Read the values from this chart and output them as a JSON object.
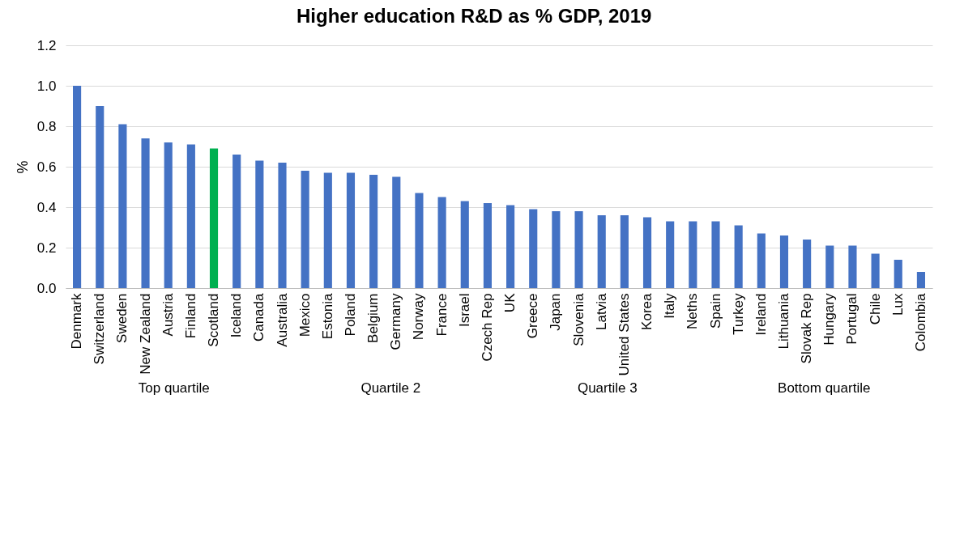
{
  "chart_data": {
    "type": "bar",
    "title": "Higher education R&D as % GDP, 2019",
    "ylabel": "%",
    "categories": [
      "Denmark",
      "Switzerland",
      "Sweden",
      "New Zealand",
      "Austria",
      "Finland",
      "Scotland",
      "Iceland",
      "Canada",
      "Australia",
      "Mexico",
      "Estonia",
      "Poland",
      "Belgium",
      "Germany",
      "Norway",
      "France",
      "Israel",
      "Czech Rep",
      "UK",
      "Greece",
      "Japan",
      "Slovenia",
      "Latvia",
      "United States",
      "Korea",
      "Italy",
      "Neths",
      "Spain",
      "Turkey",
      "Ireland",
      "Lithuania",
      "Slovak Rep",
      "Hungary",
      "Portugal",
      "Chile",
      "Lux",
      "Colombia"
    ],
    "values": [
      1.0,
      0.9,
      0.81,
      0.74,
      0.72,
      0.71,
      0.69,
      0.66,
      0.63,
      0.62,
      0.58,
      0.57,
      0.57,
      0.56,
      0.55,
      0.47,
      0.45,
      0.43,
      0.42,
      0.41,
      0.39,
      0.38,
      0.38,
      0.36,
      0.36,
      0.35,
      0.33,
      0.33,
      0.33,
      0.31,
      0.27,
      0.26,
      0.24,
      0.21,
      0.21,
      0.17,
      0.14,
      0.08
    ],
    "colors": [
      "#4472c4",
      "#4472c4",
      "#4472c4",
      "#4472c4",
      "#4472c4",
      "#4472c4",
      "#00b050",
      "#4472c4",
      "#4472c4",
      "#4472c4",
      "#4472c4",
      "#4472c4",
      "#4472c4",
      "#4472c4",
      "#4472c4",
      "#4472c4",
      "#4472c4",
      "#4472c4",
      "#4472c4",
      "#4472c4",
      "#4472c4",
      "#4472c4",
      "#4472c4",
      "#4472c4",
      "#4472c4",
      "#4472c4",
      "#4472c4",
      "#4472c4",
      "#4472c4",
      "#4472c4",
      "#4472c4",
      "#4472c4",
      "#4472c4",
      "#4472c4",
      "#4472c4",
      "#4472c4",
      "#4472c4",
      "#4472c4"
    ],
    "ylim": [
      0,
      1.2
    ],
    "yticks": [
      {
        "value": 0,
        "label": "0.0"
      },
      {
        "value": 0.2,
        "label": "0.2"
      },
      {
        "value": 0.4,
        "label": "0.4"
      },
      {
        "value": 0.6,
        "label": "0.6"
      },
      {
        "value": 0.8,
        "label": "0.8"
      },
      {
        "value": 1,
        "label": "1.0"
      },
      {
        "value": 1.2,
        "label": "1.2"
      }
    ],
    "grid": "y",
    "annotations": [
      "Top quartile",
      "Quartile 2",
      "Quartile 3",
      "Bottom quartile"
    ]
  }
}
